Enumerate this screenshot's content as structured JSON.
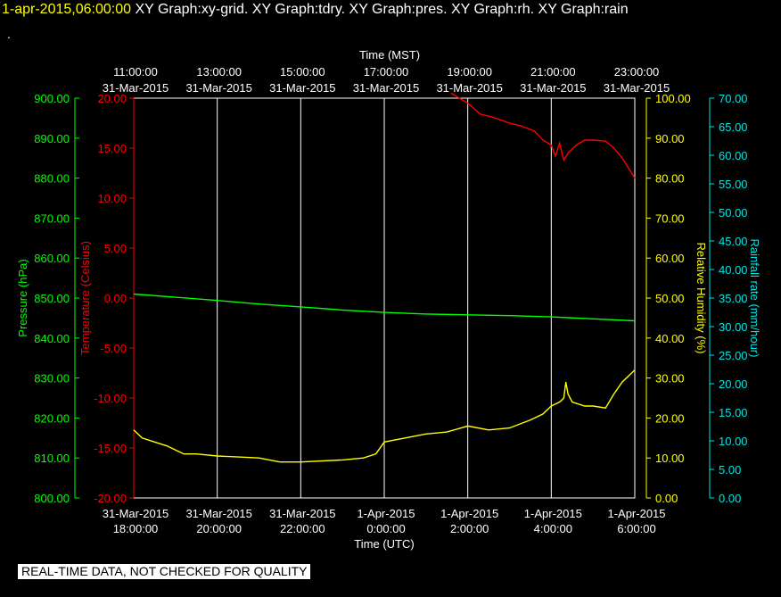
{
  "header": {
    "date": "1-apr-2015,06:00:00",
    "graphs": "XY Graph:xy-grid.  XY Graph:tdry.  XY Graph:pres.  XY Graph:rh.  XY Graph:rain",
    "dot": "."
  },
  "disclaimer": "REAL-TIME DATA, NOT CHECKED FOR QUALITY",
  "chart_data": {
    "type": "line",
    "top_axis": {
      "title": "Time (MST)",
      "ticks": [
        {
          "time": "11:00:00",
          "date": "31-Mar-2015"
        },
        {
          "time": "13:00:00",
          "date": "31-Mar-2015"
        },
        {
          "time": "15:00:00",
          "date": "31-Mar-2015"
        },
        {
          "time": "17:00:00",
          "date": "31-Mar-2015"
        },
        {
          "time": "19:00:00",
          "date": "31-Mar-2015"
        },
        {
          "time": "21:00:00",
          "date": "31-Mar-2015"
        },
        {
          "time": "23:00:00",
          "date": "31-Mar-2015"
        }
      ]
    },
    "bottom_axis": {
      "title": "Time (UTC)",
      "ticks": [
        {
          "date": "31-Mar-2015",
          "time": "18:00:00"
        },
        {
          "date": "31-Mar-2015",
          "time": "20:00:00"
        },
        {
          "date": "31-Mar-2015",
          "time": "22:00:00"
        },
        {
          "date": "1-Apr-2015",
          "time": "0:00:00"
        },
        {
          "date": "1-Apr-2015",
          "time": "2:00:00"
        },
        {
          "date": "1-Apr-2015",
          "time": "4:00:00"
        },
        {
          "date": "1-Apr-2015",
          "time": "6:00:00"
        }
      ]
    },
    "x_hours_range": [
      0,
      12
    ],
    "axes": {
      "pressure": {
        "label": "Pressure (hPa)",
        "color": "#00ff00",
        "range": [
          800,
          900
        ],
        "ticks": [
          "800.00",
          "810.00",
          "820.00",
          "830.00",
          "840.00",
          "850.00",
          "860.00",
          "870.00",
          "880.00",
          "890.00",
          "900.00"
        ]
      },
      "temperature": {
        "label": "Temperature (Celsius)",
        "color": "#ff0000",
        "range": [
          -20,
          20
        ],
        "ticks": [
          "-20.00",
          "-15.00",
          "-10.00",
          "-5.00",
          "0.00",
          "5.00",
          "10.00",
          "15.00",
          "20.00"
        ]
      },
      "humidity": {
        "label": "Relative Humidity (%)",
        "color": "#ffff00",
        "range": [
          0,
          100
        ],
        "ticks": [
          "0.00",
          "10.00",
          "20.00",
          "30.00",
          "40.00",
          "50.00",
          "60.00",
          "70.00",
          "80.00",
          "90.00",
          "100.00"
        ]
      },
      "rain": {
        "label": "Rainfall rate (mm/hour)",
        "color": "#00e5e5",
        "range": [
          0,
          70
        ],
        "ticks": [
          "0.00",
          "5.00",
          "10.00",
          "15.00",
          "20.00",
          "25.00",
          "30.00",
          "35.00",
          "40.00",
          "45.00",
          "50.00",
          "55.00",
          "60.00",
          "65.00",
          "70.00"
        ]
      }
    },
    "series": [
      {
        "name": "Temperature",
        "axis": "temperature",
        "color": "#ff0000",
        "x": [
          7.6,
          8.0,
          8.3,
          8.6,
          9.0,
          9.3,
          9.6,
          9.8,
          10.0,
          10.1,
          10.2,
          10.3,
          10.4,
          10.6,
          10.8,
          11.0,
          11.3,
          11.5,
          11.7,
          11.85,
          12.0
        ],
        "y": [
          20.5,
          19.5,
          18.4,
          18.1,
          17.5,
          17.2,
          16.7,
          15.8,
          15.3,
          14.2,
          15.5,
          13.8,
          14.5,
          15.3,
          15.8,
          15.8,
          15.7,
          15.0,
          14.0,
          13.0,
          12.0
        ]
      },
      {
        "name": "Pressure",
        "axis": "pressure",
        "color": "#00ff00",
        "x": [
          0,
          1,
          2,
          3,
          4,
          5,
          6,
          7,
          8,
          9,
          10,
          11,
          12
        ],
        "y": [
          851.0,
          850.2,
          849.4,
          848.5,
          847.8,
          847.0,
          846.4,
          846.0,
          845.8,
          845.6,
          845.3,
          844.8,
          844.3
        ]
      },
      {
        "name": "Relative Humidity",
        "axis": "humidity",
        "color": "#ffff00",
        "x": [
          0,
          0.2,
          0.5,
          0.8,
          1.0,
          1.2,
          1.5,
          2.0,
          3.0,
          3.5,
          4.0,
          5.0,
          5.5,
          5.8,
          6.0,
          6.5,
          7.0,
          7.5,
          8.0,
          8.5,
          9.0,
          9.5,
          9.8,
          10.0,
          10.2,
          10.3,
          10.35,
          10.4,
          10.5,
          10.8,
          11.0,
          11.3,
          11.5,
          11.7,
          12.0
        ],
        "y": [
          17,
          15,
          14,
          13,
          12,
          11,
          11,
          10.5,
          10,
          9,
          9,
          9.5,
          10,
          11,
          14,
          15,
          16,
          16.5,
          18,
          17,
          17.5,
          19.5,
          21,
          23,
          24,
          25,
          29,
          26,
          24,
          23,
          23,
          22.5,
          26,
          29,
          32
        ]
      },
      {
        "name": "Rainfall rate",
        "axis": "rain",
        "color": "#00e5e5",
        "x": [
          0,
          12
        ],
        "y": [
          0,
          0
        ]
      }
    ]
  }
}
